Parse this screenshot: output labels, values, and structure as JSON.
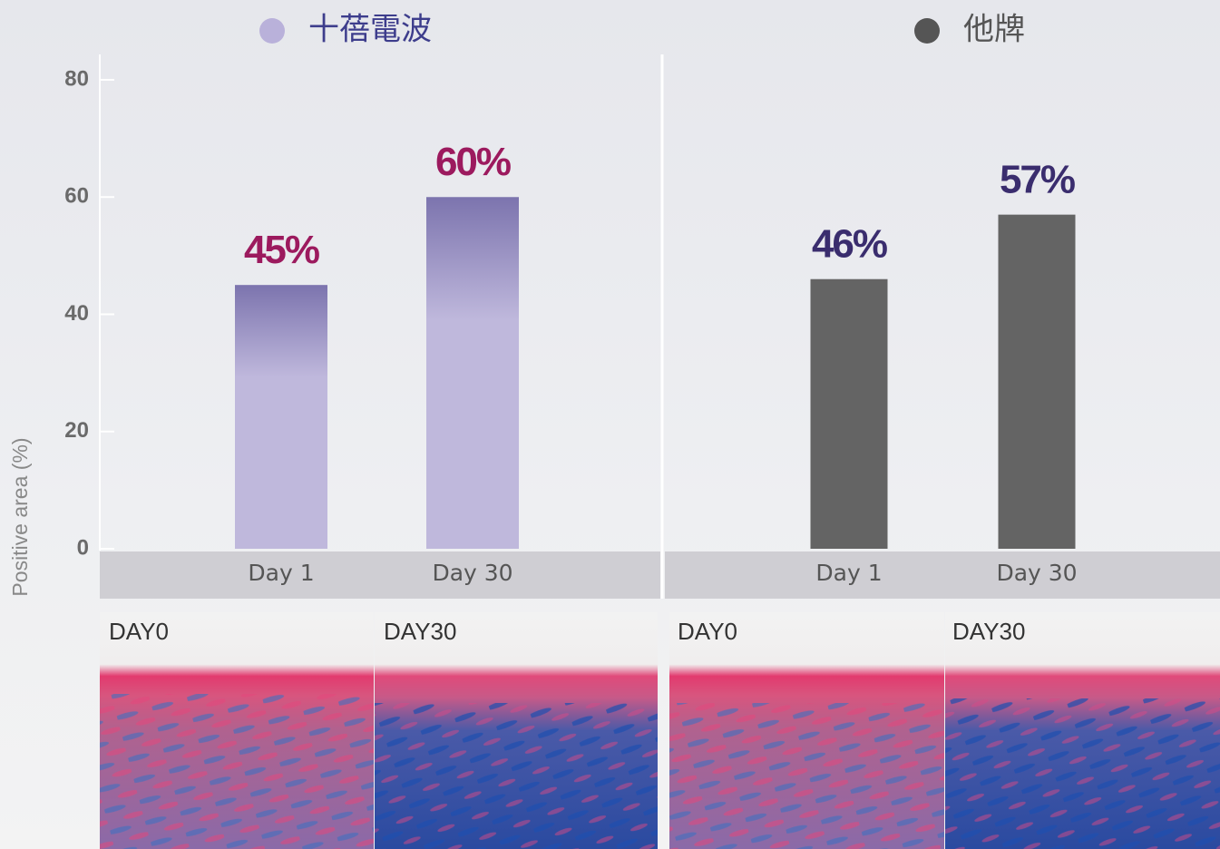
{
  "chart_data": [
    {
      "type": "bar",
      "title": "十蓓電波",
      "categories": [
        "Day 1",
        "Day 30"
      ],
      "values": [
        45,
        60
      ],
      "value_labels": [
        "45%",
        "60%"
      ],
      "color": "#bfb8dc",
      "label_color": "#9c1a5e",
      "ylim": [
        0,
        80
      ],
      "yticks": [
        0,
        20,
        40,
        60,
        80
      ],
      "ylabel": "Positive area (%)",
      "micrographs": [
        "DAY0",
        "DAY30"
      ]
    },
    {
      "type": "bar",
      "title": "他牌",
      "categories": [
        "Day 1",
        "Day 30"
      ],
      "values": [
        46,
        57
      ],
      "value_labels": [
        "46%",
        "57%"
      ],
      "color": "#646464",
      "label_color": "#3a2d6e",
      "ylim": [
        0,
        80
      ],
      "micrographs": [
        "DAY0",
        "DAY30"
      ]
    }
  ]
}
